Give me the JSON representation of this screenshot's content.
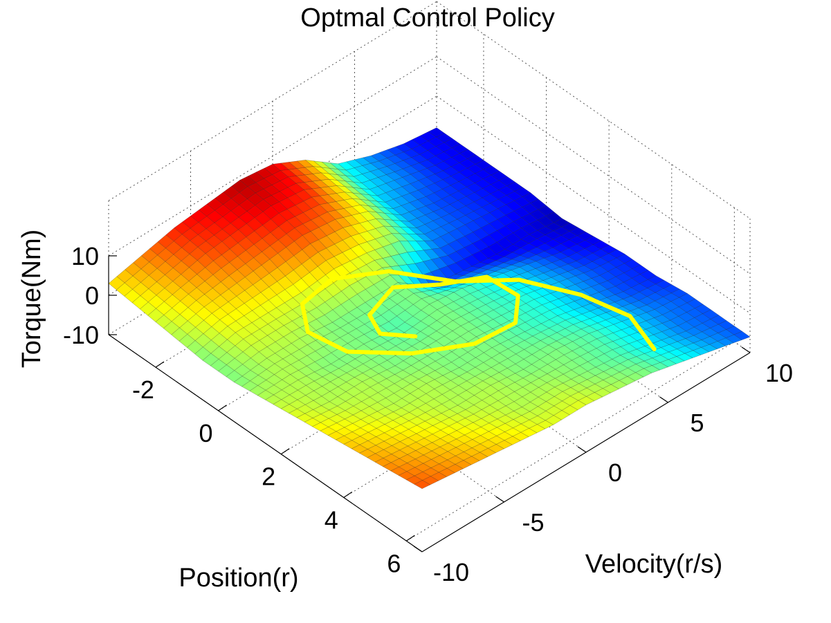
{
  "chart_data": {
    "type": "surface",
    "title": "Optmal Control Policy",
    "xlabel": "Position(r)",
    "ylabel": "Velocity(r/s)",
    "zlabel": "Torque(Nm)",
    "xlim": [
      -3.5,
      6.5
    ],
    "ylim": [
      -10,
      10
    ],
    "zlim": [
      -10,
      10
    ],
    "xticks": [
      "-2",
      "0",
      "2",
      "4",
      "6"
    ],
    "yticks": [
      "-10",
      "-5",
      "0",
      "5",
      "10"
    ],
    "zticks": [
      "10",
      "0",
      "-10"
    ],
    "grid": true,
    "colormap": "jet",
    "trajectory_color": "#ffff00",
    "surface": {
      "x": [
        -3.5,
        -2.5,
        -1.5,
        -0.5,
        0.5,
        1.5,
        2.5,
        3.5,
        4.5,
        5.5,
        6.5
      ],
      "y": [
        -10,
        -8,
        -6,
        -4,
        -2,
        0,
        2,
        4,
        6,
        8,
        10
      ],
      "z": [
        [
          3,
          2,
          1,
          0,
          0,
          1,
          2,
          3,
          4,
          5,
          6
        ],
        [
          5,
          4,
          3,
          2,
          1,
          1,
          1,
          2,
          3,
          4,
          5
        ],
        [
          7,
          6,
          4,
          2,
          1,
          0,
          1,
          1,
          2,
          3,
          4
        ],
        [
          8,
          7,
          5,
          2,
          0,
          0,
          0,
          1,
          1,
          2,
          3
        ],
        [
          9,
          8,
          6,
          3,
          0,
          -1,
          0,
          0,
          1,
          1,
          2
        ],
        [
          8,
          7,
          5,
          2,
          0,
          0,
          0,
          0,
          0,
          1,
          2
        ],
        [
          4,
          3,
          2,
          0,
          -6,
          -1,
          -1,
          -1,
          0,
          0,
          1
        ],
        [
          -2,
          -3,
          -4,
          -5,
          -7,
          -3,
          -2,
          -2,
          -1,
          -1,
          0
        ],
        [
          -5,
          -5,
          -6,
          -6,
          -8,
          -5,
          -4,
          -4,
          -3,
          -3,
          -2
        ],
        [
          -7,
          -7,
          -7,
          -7,
          -8,
          -7,
          -6,
          -6,
          -5,
          -5,
          -4
        ],
        [
          -8,
          -8,
          -8,
          -8,
          -9,
          -8,
          -7,
          -7,
          -6,
          -6,
          -6
        ]
      ]
    },
    "trajectory": {
      "x": [
        5.8,
        4.5,
        3.2,
        2.0,
        1.0,
        0.2,
        -0.3,
        -0.2,
        0.5,
        1.5,
        2.5,
        3.2,
        3.2,
        2.5,
        1.5,
        0.8,
        0.6,
        0.9,
        1.5,
        2.1
      ],
      "y": [
        5.5,
        6.5,
        6.0,
        4.5,
        2.5,
        0.0,
        -2.5,
        -4.5,
        -5.5,
        -5.0,
        -3.0,
        -0.5,
        2.0,
        3.5,
        3.5,
        2.0,
        -0.5,
        -2.5,
        -3.0,
        -2.0
      ]
    }
  }
}
